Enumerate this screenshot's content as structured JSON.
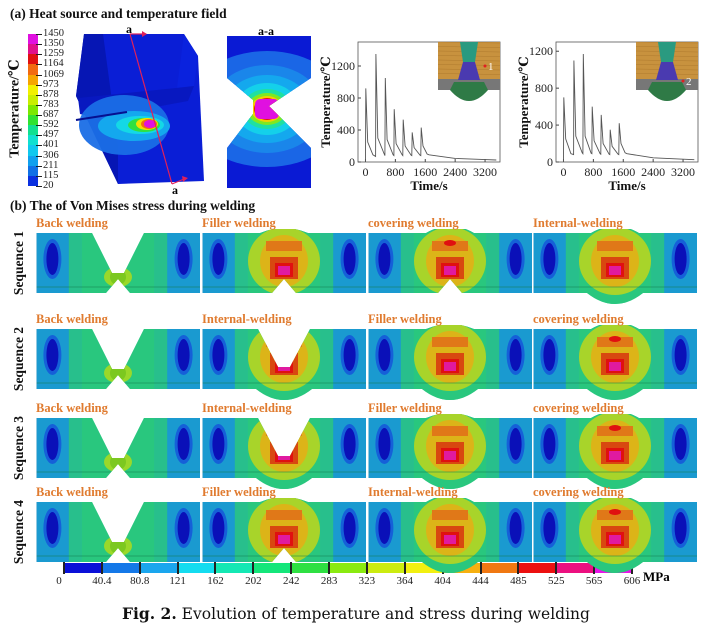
{
  "panel_a": {
    "title": "(a) Heat source and temperature field",
    "colorbar_label": "Temperature/℃",
    "colorbar_ticks": [
      "1450",
      "1350",
      "1259",
      "1164",
      "1069",
      "973",
      "878",
      "783",
      "687",
      "592",
      "497",
      "401",
      "306",
      "211",
      "115",
      "20"
    ],
    "colorbar_colors": [
      "#e010e0",
      "#e0108a",
      "#e01010",
      "#f26a10",
      "#f6a500",
      "#f2f000",
      "#c8ee00",
      "#7ce800",
      "#30e230",
      "#10e090",
      "#10e0d0",
      "#10c8ee",
      "#10a0ee",
      "#1070e6",
      "#0a30e0"
    ],
    "section_marker": "a",
    "section_view_label": "a-a"
  },
  "chart_data": [
    {
      "type": "line",
      "title": "",
      "xlabel": "Time/s",
      "ylabel": "Temperature/℃",
      "xlim": [
        -200,
        3600
      ],
      "ylim": [
        0,
        1500
      ],
      "xticks": [
        "0",
        "800",
        "1600",
        "2400",
        "3200"
      ],
      "xtick_values": [
        0,
        800,
        1600,
        2400,
        3200
      ],
      "yticks": [
        "0",
        "400",
        "800",
        "1200"
      ],
      "ytick_values": [
        0,
        400,
        800,
        1200
      ],
      "inset_point_label": "1",
      "series": [
        {
          "name": "Point 1",
          "x": [
            0,
            10,
            60,
            200,
            270,
            280,
            330,
            500,
            520,
            530,
            580,
            740,
            760,
            770,
            820,
            980,
            1000,
            1010,
            1060,
            1220,
            1240,
            1250,
            1300,
            1460,
            1480,
            1490,
            1540,
            1650,
            1700,
            2400,
            3200,
            3500
          ],
          "y": [
            0,
            920,
            250,
            90,
            70,
            1350,
            300,
            100,
            80,
            1050,
            280,
            90,
            80,
            660,
            230,
            90,
            80,
            530,
            200,
            85,
            80,
            370,
            180,
            85,
            80,
            430,
            200,
            100,
            90,
            45,
            30,
            25
          ]
        }
      ]
    },
    {
      "type": "line",
      "title": "",
      "xlabel": "Time/s",
      "ylabel": "Temperature/℃",
      "xlim": [
        -200,
        3600
      ],
      "ylim": [
        0,
        1300
      ],
      "xticks": [
        "0",
        "800",
        "1600",
        "2400",
        "3200"
      ],
      "xtick_values": [
        0,
        800,
        1600,
        2400,
        3200
      ],
      "yticks": [
        "0",
        "400",
        "800",
        "1200"
      ],
      "ytick_values": [
        0,
        400,
        800,
        1200
      ],
      "inset_point_label": "2",
      "series": [
        {
          "name": "Point 2",
          "x": [
            0,
            10,
            60,
            200,
            270,
            280,
            330,
            500,
            520,
            530,
            580,
            740,
            760,
            770,
            820,
            980,
            1000,
            1010,
            1060,
            1220,
            1240,
            1250,
            1300,
            1460,
            1480,
            1490,
            1540,
            1650,
            1700,
            2400,
            3200,
            3500
          ],
          "y": [
            0,
            700,
            250,
            90,
            80,
            1100,
            280,
            100,
            90,
            1170,
            280,
            95,
            90,
            600,
            230,
            90,
            85,
            510,
            200,
            85,
            80,
            350,
            170,
            85,
            80,
            420,
            200,
            100,
            90,
            45,
            30,
            25
          ]
        }
      ]
    }
  ],
  "panel_b": {
    "title": "(b) The of Von Mises stress during welding",
    "rows": [
      {
        "label": "Sequence 1",
        "steps": [
          "Back welding",
          "Filler welding",
          "covering welding",
          "Internal-welding"
        ]
      },
      {
        "label": "Sequence 2",
        "steps": [
          "Back welding",
          "Internal-welding",
          "Filler welding",
          "covering welding"
        ]
      },
      {
        "label": "Sequence 3",
        "steps": [
          "Back welding",
          "Internal-welding",
          "Filler welding",
          "covering welding"
        ]
      },
      {
        "label": "Sequence 4",
        "steps": [
          "Back welding",
          "Filler welding",
          "Internal-welding",
          "covering welding"
        ]
      }
    ],
    "colorbar_ticks": [
      "0",
      "40.4",
      "80.8",
      "121",
      "162",
      "202",
      "242",
      "283",
      "323",
      "364",
      "404",
      "444",
      "485",
      "525",
      "565",
      "606"
    ],
    "colorbar_colors": [
      "#0a10d8",
      "#1478e8",
      "#1aa6ee",
      "#14dcf0",
      "#14e8b4",
      "#14e67a",
      "#2ee042",
      "#8aea10",
      "#ccec10",
      "#f2f010",
      "#f6b010",
      "#f07812",
      "#ec1010",
      "#ec1080",
      "#e814e8"
    ],
    "colorbar_unit": "MPa"
  },
  "caption": {
    "label": "Fig. 2.",
    "text": "Evolution of temperature and stress during welding"
  }
}
